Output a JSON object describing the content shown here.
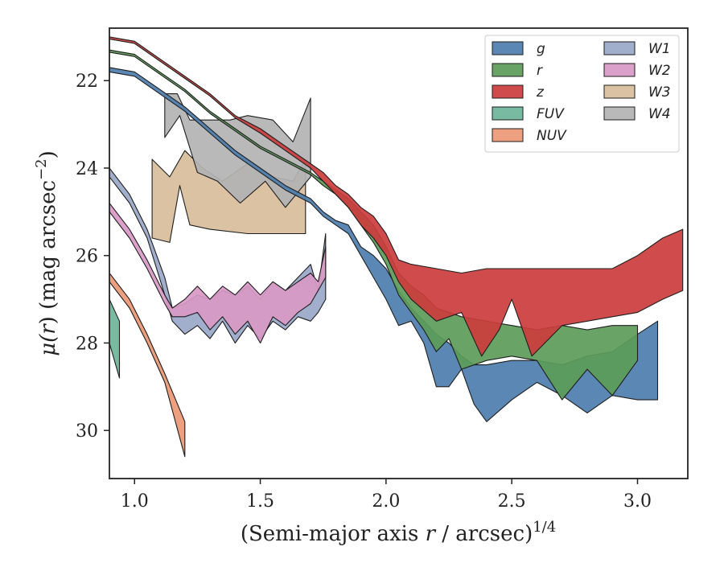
{
  "chart_data": {
    "type": "area",
    "xlabel": "(Semi-major axis r / arcsec)",
    "xlabel_main": "(Semi-major axis ",
    "xlabel_var": "r",
    "xlabel_rest": " / arcsec)",
    "xlabel_sup": "1/4",
    "ylabel": "μ(r) (mag arcsec⁻²)",
    "ylabel_mu": "μ(",
    "ylabel_var": "r",
    "ylabel_rest": ") (mag arcsec",
    "ylabel_sup": "−2",
    "ylabel_close": ")",
    "xlim": [
      0.9,
      3.2
    ],
    "ylim": [
      31.1,
      20.8
    ],
    "y_inverted": true,
    "xticks": [
      1.0,
      1.5,
      2.0,
      2.5,
      3.0
    ],
    "xtick_labels": [
      "1.0",
      "1.5",
      "2.0",
      "2.5",
      "3.0"
    ],
    "yticks": [
      22,
      24,
      26,
      28,
      30
    ],
    "ytick_labels": [
      "22",
      "24",
      "26",
      "28",
      "30"
    ],
    "grid": false,
    "legend_position": "top-right",
    "legend_columns": 2,
    "legend": [
      "g",
      "r",
      "z",
      "FUV",
      "NUV",
      "W1",
      "W2",
      "W3",
      "W4"
    ],
    "series": [
      {
        "name": "FUV",
        "color": "#6db59a",
        "upper": [
          [
            0.9,
            27.0
          ],
          [
            0.94,
            27.5
          ]
        ],
        "lower": [
          [
            0.9,
            28.0
          ],
          [
            0.94,
            28.8
          ]
        ]
      },
      {
        "name": "NUV",
        "color": "#ec9874",
        "upper": [
          [
            0.9,
            26.4
          ],
          [
            0.98,
            27.0
          ],
          [
            1.05,
            27.8
          ],
          [
            1.12,
            28.7
          ],
          [
            1.2,
            29.8
          ]
        ],
        "lower": [
          [
            0.9,
            26.6
          ],
          [
            0.98,
            27.2
          ],
          [
            1.05,
            28.0
          ],
          [
            1.12,
            28.9
          ],
          [
            1.2,
            30.6
          ]
        ]
      },
      {
        "name": "W1",
        "color": "#99a8c8",
        "upper": [
          [
            0.9,
            24.0
          ],
          [
            0.98,
            24.6
          ],
          [
            1.05,
            25.4
          ],
          [
            1.12,
            26.5
          ],
          [
            1.15,
            27.2
          ],
          [
            1.2,
            27.1
          ],
          [
            1.25,
            26.9
          ],
          [
            1.3,
            27.0
          ],
          [
            1.35,
            26.8
          ],
          [
            1.4,
            26.9
          ],
          [
            1.45,
            26.7
          ],
          [
            1.5,
            27.0
          ],
          [
            1.55,
            26.6
          ],
          [
            1.6,
            26.8
          ],
          [
            1.65,
            26.5
          ],
          [
            1.7,
            26.2
          ],
          [
            1.73,
            26.8
          ],
          [
            1.76,
            25.5
          ]
        ],
        "lower": [
          [
            0.9,
            24.2
          ],
          [
            0.98,
            24.8
          ],
          [
            1.05,
            25.6
          ],
          [
            1.12,
            26.9
          ],
          [
            1.15,
            27.5
          ],
          [
            1.2,
            27.8
          ],
          [
            1.25,
            27.6
          ],
          [
            1.3,
            27.9
          ],
          [
            1.35,
            27.5
          ],
          [
            1.4,
            28.0
          ],
          [
            1.45,
            27.6
          ],
          [
            1.5,
            27.9
          ],
          [
            1.55,
            27.5
          ],
          [
            1.6,
            27.7
          ],
          [
            1.65,
            27.4
          ],
          [
            1.7,
            27.5
          ],
          [
            1.73,
            27.3
          ],
          [
            1.76,
            27.0
          ]
        ]
      },
      {
        "name": "W2",
        "color": "#d999c7",
        "upper": [
          [
            0.9,
            24.8
          ],
          [
            0.98,
            25.4
          ],
          [
            1.05,
            26.1
          ],
          [
            1.12,
            26.9
          ],
          [
            1.15,
            27.2
          ],
          [
            1.2,
            27.0
          ],
          [
            1.25,
            26.7
          ],
          [
            1.3,
            27.0
          ],
          [
            1.35,
            26.7
          ],
          [
            1.4,
            26.9
          ],
          [
            1.45,
            26.6
          ],
          [
            1.5,
            26.9
          ],
          [
            1.55,
            26.6
          ],
          [
            1.6,
            26.8
          ],
          [
            1.65,
            26.6
          ],
          [
            1.7,
            26.4
          ],
          [
            1.73,
            26.6
          ],
          [
            1.76,
            25.8
          ]
        ],
        "lower": [
          [
            0.9,
            25.0
          ],
          [
            0.98,
            25.6
          ],
          [
            1.05,
            26.3
          ],
          [
            1.12,
            27.1
          ],
          [
            1.15,
            27.4
          ],
          [
            1.2,
            27.4
          ],
          [
            1.25,
            27.3
          ],
          [
            1.3,
            27.7
          ],
          [
            1.35,
            27.4
          ],
          [
            1.4,
            27.8
          ],
          [
            1.45,
            27.5
          ],
          [
            1.5,
            28.0
          ],
          [
            1.55,
            27.4
          ],
          [
            1.6,
            27.6
          ],
          [
            1.65,
            27.3
          ],
          [
            1.7,
            27.1
          ],
          [
            1.73,
            26.8
          ],
          [
            1.76,
            26.5
          ]
        ]
      },
      {
        "name": "W3",
        "color": "#d8bd9a",
        "upper": [
          [
            1.07,
            23.8
          ],
          [
            1.14,
            24.2
          ],
          [
            1.2,
            23.6
          ],
          [
            1.27,
            24.0
          ],
          [
            1.35,
            24.3
          ],
          [
            1.45,
            23.9
          ],
          [
            1.55,
            24.2
          ],
          [
            1.63,
            24.3
          ],
          [
            1.68,
            23.8
          ]
        ],
        "lower": [
          [
            1.07,
            25.6
          ],
          [
            1.14,
            25.7
          ],
          [
            1.18,
            24.4
          ],
          [
            1.22,
            25.3
          ],
          [
            1.3,
            25.4
          ],
          [
            1.45,
            25.5
          ],
          [
            1.55,
            25.5
          ],
          [
            1.68,
            25.5
          ]
        ]
      },
      {
        "name": "W4",
        "color": "#b3b3b3",
        "upper": [
          [
            1.12,
            22.3
          ],
          [
            1.17,
            22.3
          ],
          [
            1.22,
            22.9
          ],
          [
            1.38,
            22.9
          ],
          [
            1.45,
            22.8
          ],
          [
            1.55,
            22.9
          ],
          [
            1.63,
            23.4
          ],
          [
            1.7,
            22.4
          ]
        ],
        "lower": [
          [
            1.12,
            23.3
          ],
          [
            1.18,
            22.8
          ],
          [
            1.25,
            24.1
          ],
          [
            1.33,
            24.3
          ],
          [
            1.42,
            24.8
          ],
          [
            1.52,
            24.3
          ],
          [
            1.6,
            24.9
          ],
          [
            1.7,
            24.2
          ]
        ]
      },
      {
        "name": "g",
        "color": "#4c7dac",
        "upper": [
          [
            0.9,
            21.7
          ],
          [
            1.0,
            21.8
          ],
          [
            1.1,
            22.2
          ],
          [
            1.2,
            22.6
          ],
          [
            1.3,
            23.1
          ],
          [
            1.4,
            23.6
          ],
          [
            1.5,
            24.0
          ],
          [
            1.6,
            24.4
          ],
          [
            1.7,
            24.7
          ],
          [
            1.75,
            25.0
          ],
          [
            1.8,
            25.2
          ],
          [
            1.85,
            25.3
          ],
          [
            1.9,
            25.8
          ],
          [
            1.95,
            26.0
          ],
          [
            2.0,
            26.3
          ],
          [
            2.05,
            26.8
          ],
          [
            2.1,
            27.2
          ],
          [
            2.15,
            27.5
          ],
          [
            2.2,
            27.8
          ],
          [
            2.25,
            28.0
          ],
          [
            2.3,
            28.3
          ],
          [
            2.35,
            28.5
          ],
          [
            2.4,
            28.5
          ],
          [
            2.5,
            28.4
          ],
          [
            2.6,
            28.4
          ],
          [
            2.7,
            28.5
          ],
          [
            2.8,
            28.3
          ],
          [
            2.9,
            28.2
          ],
          [
            3.0,
            27.8
          ],
          [
            3.08,
            27.5
          ]
        ],
        "lower": [
          [
            0.9,
            21.8
          ],
          [
            1.0,
            21.9
          ],
          [
            1.1,
            22.3
          ],
          [
            1.2,
            22.7
          ],
          [
            1.3,
            23.2
          ],
          [
            1.4,
            23.7
          ],
          [
            1.5,
            24.1
          ],
          [
            1.6,
            24.5
          ],
          [
            1.7,
            24.8
          ],
          [
            1.75,
            25.1
          ],
          [
            1.8,
            25.3
          ],
          [
            1.85,
            25.5
          ],
          [
            1.9,
            26.0
          ],
          [
            1.95,
            26.5
          ],
          [
            2.0,
            27.0
          ],
          [
            2.05,
            27.6
          ],
          [
            2.1,
            27.5
          ],
          [
            2.15,
            28.0
          ],
          [
            2.2,
            29.0
          ],
          [
            2.25,
            29.0
          ],
          [
            2.3,
            28.6
          ],
          [
            2.35,
            29.4
          ],
          [
            2.4,
            29.8
          ],
          [
            2.5,
            29.3
          ],
          [
            2.6,
            28.9
          ],
          [
            2.7,
            29.2
          ],
          [
            2.8,
            29.6
          ],
          [
            2.9,
            29.2
          ],
          [
            3.0,
            29.3
          ],
          [
            3.08,
            29.3
          ]
        ]
      },
      {
        "name": "r",
        "color": "#5c9c59",
        "upper": [
          [
            0.9,
            21.3
          ],
          [
            1.0,
            21.4
          ],
          [
            1.1,
            21.8
          ],
          [
            1.2,
            22.2
          ],
          [
            1.3,
            22.7
          ],
          [
            1.4,
            23.1
          ],
          [
            1.5,
            23.5
          ],
          [
            1.6,
            23.8
          ],
          [
            1.7,
            24.1
          ],
          [
            1.75,
            24.3
          ],
          [
            1.8,
            24.5
          ],
          [
            1.85,
            24.7
          ],
          [
            1.9,
            25.0
          ],
          [
            1.95,
            25.3
          ],
          [
            2.0,
            25.8
          ],
          [
            2.05,
            26.4
          ],
          [
            2.1,
            26.7
          ],
          [
            2.15,
            26.9
          ],
          [
            2.2,
            27.2
          ],
          [
            2.3,
            27.4
          ],
          [
            2.4,
            27.5
          ],
          [
            2.5,
            27.6
          ],
          [
            2.6,
            27.7
          ],
          [
            2.7,
            27.6
          ],
          [
            2.8,
            27.7
          ],
          [
            2.9,
            27.6
          ],
          [
            3.0,
            27.6
          ]
        ],
        "lower": [
          [
            0.9,
            21.35
          ],
          [
            1.0,
            21.45
          ],
          [
            1.1,
            21.85
          ],
          [
            1.2,
            22.25
          ],
          [
            1.3,
            22.75
          ],
          [
            1.4,
            23.15
          ],
          [
            1.5,
            23.55
          ],
          [
            1.6,
            23.85
          ],
          [
            1.7,
            24.15
          ],
          [
            1.75,
            24.4
          ],
          [
            1.8,
            24.6
          ],
          [
            1.85,
            24.9
          ],
          [
            1.9,
            25.3
          ],
          [
            1.95,
            25.7
          ],
          [
            2.0,
            26.2
          ],
          [
            2.05,
            26.9
          ],
          [
            2.1,
            27.3
          ],
          [
            2.15,
            27.7
          ],
          [
            2.2,
            28.2
          ],
          [
            2.25,
            27.9
          ],
          [
            2.3,
            28.6
          ],
          [
            2.4,
            28.4
          ],
          [
            2.5,
            28.3
          ],
          [
            2.6,
            28.4
          ],
          [
            2.7,
            29.3
          ],
          [
            2.8,
            28.6
          ],
          [
            2.9,
            29.2
          ],
          [
            3.0,
            28.4
          ]
        ]
      },
      {
        "name": "z",
        "color": "#cc3d3d",
        "upper": [
          [
            0.9,
            21.0
          ],
          [
            1.0,
            21.1
          ],
          [
            1.1,
            21.5
          ],
          [
            1.2,
            21.9
          ],
          [
            1.3,
            22.3
          ],
          [
            1.4,
            22.8
          ],
          [
            1.5,
            23.1
          ],
          [
            1.6,
            23.5
          ],
          [
            1.7,
            23.9
          ],
          [
            1.75,
            24.1
          ],
          [
            1.8,
            24.4
          ],
          [
            1.85,
            24.6
          ],
          [
            1.9,
            24.9
          ],
          [
            1.95,
            25.1
          ],
          [
            2.0,
            25.5
          ],
          [
            2.05,
            26.1
          ],
          [
            2.1,
            26.2
          ],
          [
            2.2,
            26.3
          ],
          [
            2.3,
            26.4
          ],
          [
            2.4,
            26.3
          ],
          [
            2.5,
            26.3
          ],
          [
            2.6,
            26.3
          ],
          [
            2.7,
            26.3
          ],
          [
            2.8,
            26.3
          ],
          [
            2.9,
            26.3
          ],
          [
            3.0,
            26.0
          ],
          [
            3.1,
            25.6
          ],
          [
            3.18,
            25.4
          ]
        ],
        "lower": [
          [
            0.9,
            21.05
          ],
          [
            1.0,
            21.15
          ],
          [
            1.1,
            21.55
          ],
          [
            1.2,
            21.95
          ],
          [
            1.3,
            22.35
          ],
          [
            1.4,
            22.85
          ],
          [
            1.5,
            23.2
          ],
          [
            1.6,
            23.6
          ],
          [
            1.7,
            24.0
          ],
          [
            1.75,
            24.3
          ],
          [
            1.8,
            24.6
          ],
          [
            1.85,
            24.9
          ],
          [
            1.9,
            25.3
          ],
          [
            1.95,
            25.6
          ],
          [
            2.0,
            26.0
          ],
          [
            2.05,
            26.6
          ],
          [
            2.1,
            27.0
          ],
          [
            2.2,
            27.5
          ],
          [
            2.3,
            27.3
          ],
          [
            2.38,
            28.3
          ],
          [
            2.45,
            27.7
          ],
          [
            2.5,
            27.0
          ],
          [
            2.58,
            28.3
          ],
          [
            2.7,
            27.6
          ],
          [
            2.8,
            27.5
          ],
          [
            2.9,
            27.4
          ],
          [
            3.0,
            27.3
          ],
          [
            3.1,
            27.0
          ],
          [
            3.18,
            26.8
          ]
        ]
      }
    ]
  }
}
